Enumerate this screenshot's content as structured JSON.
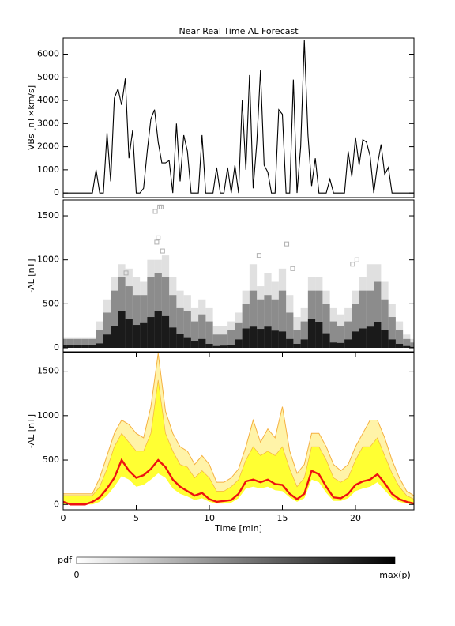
{
  "chart_data": [
    {
      "type": "line",
      "title": "Near Real Time AL Forecast",
      "ylabel": "VBs [nT×km/s]",
      "x": [
        0,
        0.25,
        0.5,
        0.75,
        1,
        1.25,
        1.5,
        1.75,
        2,
        2.25,
        2.5,
        2.75,
        3,
        3.25,
        3.5,
        3.75,
        4,
        4.25,
        4.5,
        4.75,
        5,
        5.25,
        5.5,
        5.75,
        6,
        6.25,
        6.5,
        6.75,
        7,
        7.25,
        7.5,
        7.75,
        8,
        8.25,
        8.5,
        8.75,
        9,
        9.25,
        9.5,
        9.75,
        10,
        10.25,
        10.5,
        10.75,
        11,
        11.25,
        11.5,
        11.75,
        12,
        12.25,
        12.5,
        12.75,
        13,
        13.25,
        13.5,
        13.75,
        14,
        14.25,
        14.5,
        14.75,
        15,
        15.25,
        15.5,
        15.75,
        16,
        16.25,
        16.5,
        16.75,
        17,
        17.25,
        17.5,
        17.75,
        18,
        18.25,
        18.5,
        18.75,
        19,
        19.25,
        19.5,
        19.75,
        20,
        20.25,
        20.5,
        20.75,
        21,
        21.25,
        21.5,
        21.75,
        22,
        22.25,
        22.5,
        22.75,
        23,
        23.25,
        23.5,
        23.75,
        24
      ],
      "series": [
        {
          "color": "#000000",
          "values": [
            0,
            0,
            0,
            0,
            0,
            0,
            0,
            0,
            0,
            1000,
            0,
            0,
            2600,
            500,
            4100,
            4500,
            3800,
            4950,
            1500,
            2700,
            0,
            0,
            200,
            1800,
            3200,
            3600,
            2200,
            1300,
            1300,
            1400,
            0,
            3000,
            500,
            2500,
            1800,
            0,
            0,
            0,
            2500,
            0,
            0,
            0,
            1100,
            0,
            0,
            1100,
            0,
            1200,
            0,
            4000,
            1000,
            5100,
            200,
            2200,
            5300,
            1200,
            900,
            0,
            0,
            3600,
            3400,
            0,
            0,
            4900,
            0,
            2000,
            6600,
            2500,
            300,
            1500,
            0,
            0,
            0,
            600,
            0,
            0,
            0,
            0,
            1800,
            700,
            2400,
            1200,
            2300,
            2200,
            1600,
            0,
            1200,
            2100,
            800,
            1100,
            0,
            0,
            0,
            0,
            0,
            0,
            0
          ]
        }
      ],
      "xlim": [
        0,
        24
      ],
      "ylim": [
        -200,
        6700
      ],
      "yticks": [
        0,
        1000,
        2000,
        3000,
        4000,
        5000,
        6000
      ]
    },
    {
      "type": "density",
      "ylabel": "-AL [nT]",
      "x": [
        0,
        0.5,
        1,
        1.5,
        2,
        2.5,
        3,
        3.5,
        4,
        4.5,
        5,
        5.5,
        6,
        6.5,
        7,
        7.5,
        8,
        8.5,
        9,
        9.5,
        10,
        10.5,
        11,
        11.5,
        12,
        12.5,
        13,
        13.5,
        14,
        14.5,
        15,
        15.5,
        16,
        16.5,
        17,
        17.5,
        18,
        18.5,
        19,
        19.5,
        20,
        20.5,
        21,
        21.5,
        22,
        22.5,
        23,
        23.5,
        24
      ],
      "series": [
        {
          "color": "#1a1a1a",
          "values": [
            30,
            30,
            30,
            30,
            30,
            50,
            150,
            250,
            420,
            330,
            260,
            280,
            350,
            420,
            360,
            230,
            160,
            120,
            80,
            100,
            45,
            20,
            25,
            35,
            95,
            220,
            240,
            215,
            240,
            195,
            185,
            100,
            45,
            95,
            330,
            295,
            165,
            60,
            55,
            95,
            185,
            220,
            240,
            295,
            200,
            95,
            45,
            20,
            10
          ]
        },
        {
          "color": "#8c8c8c",
          "values": [
            100,
            100,
            100,
            100,
            100,
            200,
            400,
            650,
            800,
            700,
            600,
            600,
            800,
            850,
            800,
            600,
            450,
            420,
            300,
            380,
            300,
            150,
            150,
            200,
            280,
            500,
            650,
            550,
            600,
            550,
            650,
            400,
            200,
            300,
            650,
            650,
            500,
            300,
            250,
            300,
            500,
            650,
            650,
            750,
            550,
            350,
            200,
            100,
            60
          ]
        },
        {
          "color": "#e0e0e0",
          "values": [
            120,
            120,
            120,
            120,
            120,
            300,
            550,
            800,
            950,
            900,
            800,
            750,
            1000,
            1000,
            1050,
            800,
            650,
            600,
            450,
            550,
            450,
            250,
            250,
            300,
            400,
            650,
            950,
            700,
            850,
            750,
            900,
            600,
            350,
            450,
            800,
            800,
            650,
            450,
            380,
            450,
            650,
            800,
            950,
            950,
            750,
            500,
            300,
            150,
            100
          ]
        }
      ],
      "outliers": {
        "color": "#b0b0b0",
        "x": [
          6.3,
          6.6,
          6.7,
          6.5,
          6.4,
          6.8,
          13.4,
          15.3,
          15.7,
          19.8,
          20.1,
          4.3
        ],
        "y": [
          1550,
          1600,
          1600,
          1250,
          1200,
          1100,
          1050,
          1180,
          900,
          950,
          1000,
          850
        ]
      },
      "xlim": [
        0,
        24
      ],
      "ylim": [
        -45,
        1680
      ],
      "yticks": [
        0,
        500,
        1000,
        1500
      ]
    },
    {
      "type": "forecast",
      "ylabel": "-AL [nT]",
      "xlabel": "Time [min]",
      "x": [
        0,
        0.5,
        1,
        1.5,
        2,
        2.5,
        3,
        3.5,
        4,
        4.5,
        5,
        5.5,
        6,
        6.5,
        7,
        7.5,
        8,
        8.5,
        9,
        9.5,
        10,
        10.5,
        11,
        11.5,
        12,
        12.5,
        13,
        13.5,
        14,
        14.5,
        15,
        15.5,
        16,
        16.5,
        17,
        17.5,
        18,
        18.5,
        19,
        19.5,
        20,
        20.5,
        21,
        21.5,
        22,
        22.5,
        23,
        23.5,
        24
      ],
      "envelope": {
        "color": "#fff3a8",
        "line_color": "#f5b041",
        "values": [
          120,
          120,
          120,
          120,
          120,
          300,
          550,
          800,
          950,
          900,
          800,
          750,
          1100,
          1700,
          1050,
          800,
          650,
          600,
          450,
          550,
          450,
          250,
          250,
          300,
          400,
          650,
          950,
          700,
          850,
          750,
          1100,
          600,
          350,
          450,
          800,
          800,
          650,
          450,
          380,
          450,
          650,
          800,
          950,
          950,
          750,
          500,
          300,
          150,
          100
        ]
      },
      "band": {
        "color": "#ffff33",
        "line_color": "#f5b041",
        "upper": [
          100,
          100,
          100,
          100,
          100,
          200,
          400,
          650,
          800,
          700,
          600,
          600,
          800,
          1400,
          800,
          600,
          450,
          420,
          300,
          380,
          300,
          150,
          150,
          200,
          280,
          500,
          650,
          550,
          600,
          550,
          650,
          400,
          200,
          300,
          650,
          650,
          500,
          300,
          250,
          300,
          500,
          650,
          650,
          750,
          550,
          350,
          200,
          100,
          60
        ],
        "lower": [
          0,
          0,
          0,
          0,
          0,
          30,
          100,
          200,
          320,
          280,
          200,
          220,
          280,
          350,
          300,
          180,
          120,
          90,
          50,
          70,
          30,
          10,
          10,
          20,
          70,
          180,
          200,
          180,
          200,
          160,
          150,
          80,
          30,
          70,
          280,
          250,
          130,
          40,
          40,
          70,
          150,
          180,
          200,
          250,
          160,
          70,
          30,
          10,
          0
        ]
      },
      "median": {
        "color": "#ee1111",
        "values": [
          30,
          0,
          0,
          0,
          30,
          80,
          180,
          300,
          500,
          380,
          300,
          330,
          400,
          500,
          420,
          280,
          200,
          150,
          100,
          130,
          60,
          30,
          40,
          50,
          120,
          260,
          280,
          250,
          280,
          230,
          220,
          120,
          60,
          120,
          380,
          340,
          200,
          80,
          70,
          120,
          220,
          260,
          280,
          340,
          240,
          120,
          60,
          30,
          10
        ]
      },
      "xlim": [
        0,
        24
      ],
      "ylim": [
        -60,
        1710
      ],
      "yticks": [
        0,
        500,
        1000,
        1500
      ],
      "xticks": [
        0,
        5,
        10,
        15,
        20
      ]
    }
  ],
  "colorbar": {
    "label": "pdf",
    "min_label": "0",
    "max_label": "max(p)",
    "colors": [
      "#ffffff",
      "#000000"
    ]
  }
}
